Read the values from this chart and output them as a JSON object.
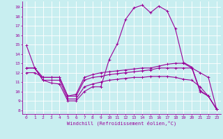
{
  "xlabel": "Windchill (Refroidissement éolien,°C)",
  "bg_color": "#c8eef0",
  "line_color": "#990099",
  "grid_color": "#ffffff",
  "x_ticks": [
    0,
    1,
    2,
    3,
    4,
    5,
    6,
    7,
    8,
    9,
    10,
    11,
    12,
    13,
    14,
    15,
    16,
    17,
    18,
    19,
    20,
    21,
    22,
    23
  ],
  "y_ticks": [
    8,
    9,
    10,
    11,
    12,
    13,
    14,
    15,
    16,
    17,
    18,
    19
  ],
  "ylim": [
    7.6,
    19.6
  ],
  "xlim": [
    -0.5,
    23.5
  ],
  "series": [
    {
      "x": [
        0,
        1,
        2,
        3,
        4,
        5,
        6,
        7,
        8,
        9,
        10,
        11,
        12,
        13,
        14,
        15,
        16,
        17,
        18,
        19,
        20,
        21,
        22,
        23
      ],
      "y": [
        14.9,
        12.5,
        11.2,
        10.9,
        10.8,
        9.0,
        9.0,
        10.0,
        10.5,
        10.5,
        13.4,
        15.1,
        17.7,
        18.9,
        19.2,
        18.4,
        19.1,
        18.6,
        16.7,
        13.1,
        12.6,
        10.1,
        9.5,
        8.1
      ]
    },
    {
      "x": [
        0,
        1,
        2,
        3,
        4,
        5,
        6,
        7,
        8,
        9,
        10,
        11,
        12,
        13,
        14,
        15,
        16,
        17,
        18,
        19,
        20,
        21,
        22,
        23
      ],
      "y": [
        12.5,
        12.5,
        11.2,
        11.2,
        11.2,
        9.2,
        9.2,
        10.5,
        10.8,
        11.0,
        11.2,
        11.3,
        11.4,
        11.5,
        11.5,
        11.6,
        11.6,
        11.6,
        11.5,
        11.3,
        11.2,
        10.5,
        9.5,
        8.1
      ]
    },
    {
      "x": [
        0,
        1,
        2,
        3,
        4,
        5,
        6,
        7,
        8,
        9,
        10,
        11,
        12,
        13,
        14,
        15,
        16,
        17,
        18,
        19,
        20,
        21,
        22,
        23
      ],
      "y": [
        12.5,
        12.5,
        11.5,
        11.5,
        11.5,
        9.5,
        9.7,
        11.5,
        11.8,
        12.0,
        12.1,
        12.2,
        12.3,
        12.4,
        12.5,
        12.5,
        12.7,
        12.9,
        13.0,
        13.0,
        12.5,
        12.0,
        11.5,
        8.1
      ]
    },
    {
      "x": [
        0,
        1,
        2,
        3,
        4,
        5,
        6,
        7,
        8,
        9,
        10,
        11,
        12,
        13,
        14,
        15,
        16,
        17,
        18,
        19,
        20,
        21,
        22,
        23
      ],
      "y": [
        12.0,
        12.0,
        11.5,
        11.5,
        11.5,
        9.5,
        9.5,
        11.2,
        11.5,
        11.6,
        11.8,
        11.9,
        12.0,
        12.1,
        12.2,
        12.3,
        12.5,
        12.5,
        12.5,
        12.5,
        12.5,
        10.0,
        9.5,
        8.1
      ]
    }
  ]
}
